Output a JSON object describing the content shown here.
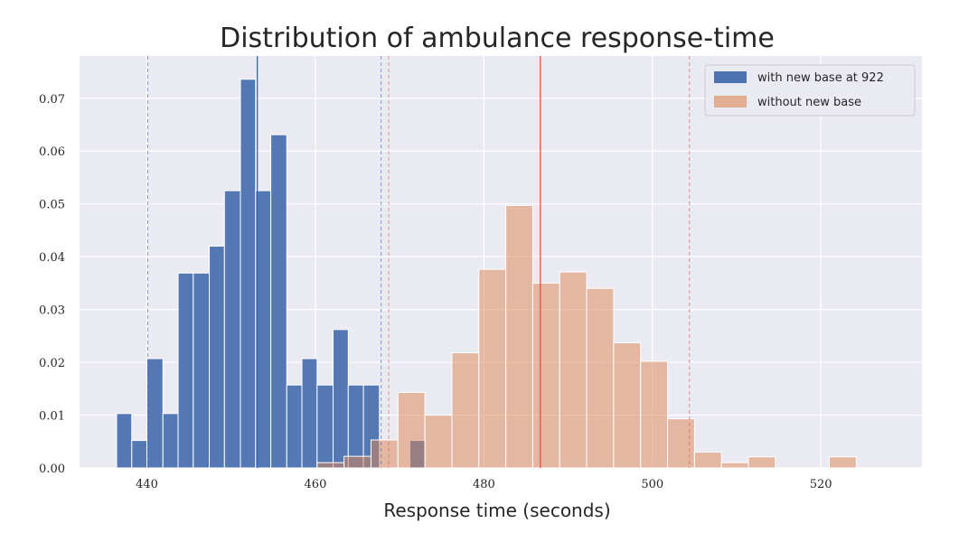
{
  "chart_data": {
    "type": "bar",
    "title": "Distribution of ambulance response-time",
    "xlabel": "Response time (seconds)",
    "ylabel": "",
    "xlim": [
      432,
      532
    ],
    "ylim": [
      0,
      0.078
    ],
    "xticks": [
      440,
      460,
      480,
      500,
      520
    ],
    "yticks": [
      0.0,
      0.01,
      0.02,
      0.03,
      0.04,
      0.05,
      0.06,
      0.07
    ],
    "ytick_labels": [
      "0.00",
      "0.01",
      "0.02",
      "0.03",
      "0.04",
      "0.05",
      "0.06",
      "0.07"
    ],
    "grid": true,
    "legend_position": "top-right",
    "series": [
      {
        "name": "with new base at 922",
        "color": "#4c72b0",
        "opacity": 0.95,
        "bin_edges": [
          436.4,
          438.2,
          440.0,
          441.9,
          443.7,
          445.5,
          447.4,
          449.2,
          451.1,
          452.9,
          454.7,
          456.6,
          458.4,
          460.2,
          462.1,
          463.9,
          465.7,
          467.6,
          469.4,
          471.2,
          473.1
        ],
        "values": [
          0.0103,
          0.0052,
          0.0207,
          0.0103,
          0.0369,
          0.0369,
          0.042,
          0.0525,
          0.0736,
          0.0525,
          0.0631,
          0.0157,
          0.0207,
          0.0157,
          0.0262,
          0.0157,
          0.0157,
          0.0,
          0.0,
          0.0052
        ],
        "mean": 453.1,
        "ci_lower": 440.1,
        "ci_upper": 467.8
      },
      {
        "name": "without new base",
        "color": "#dd8452",
        "opacity": 0.5,
        "bin_edges": [
          460.2,
          463.4,
          466.6,
          469.8,
          473.0,
          476.2,
          479.4,
          482.6,
          485.8,
          489.0,
          492.2,
          495.4,
          498.6,
          501.8,
          505.0,
          508.2,
          511.4,
          514.6,
          517.8,
          521.0,
          524.2
        ],
        "values": [
          0.001,
          0.0022,
          0.0053,
          0.0143,
          0.01,
          0.0218,
          0.0376,
          0.0497,
          0.035,
          0.0371,
          0.034,
          0.0237,
          0.0202,
          0.0093,
          0.003,
          0.001,
          0.0021,
          0.0,
          0.0,
          0.0021
        ],
        "mean": 486.7,
        "ci_lower": 468.7,
        "ci_upper": 504.4
      }
    ]
  }
}
